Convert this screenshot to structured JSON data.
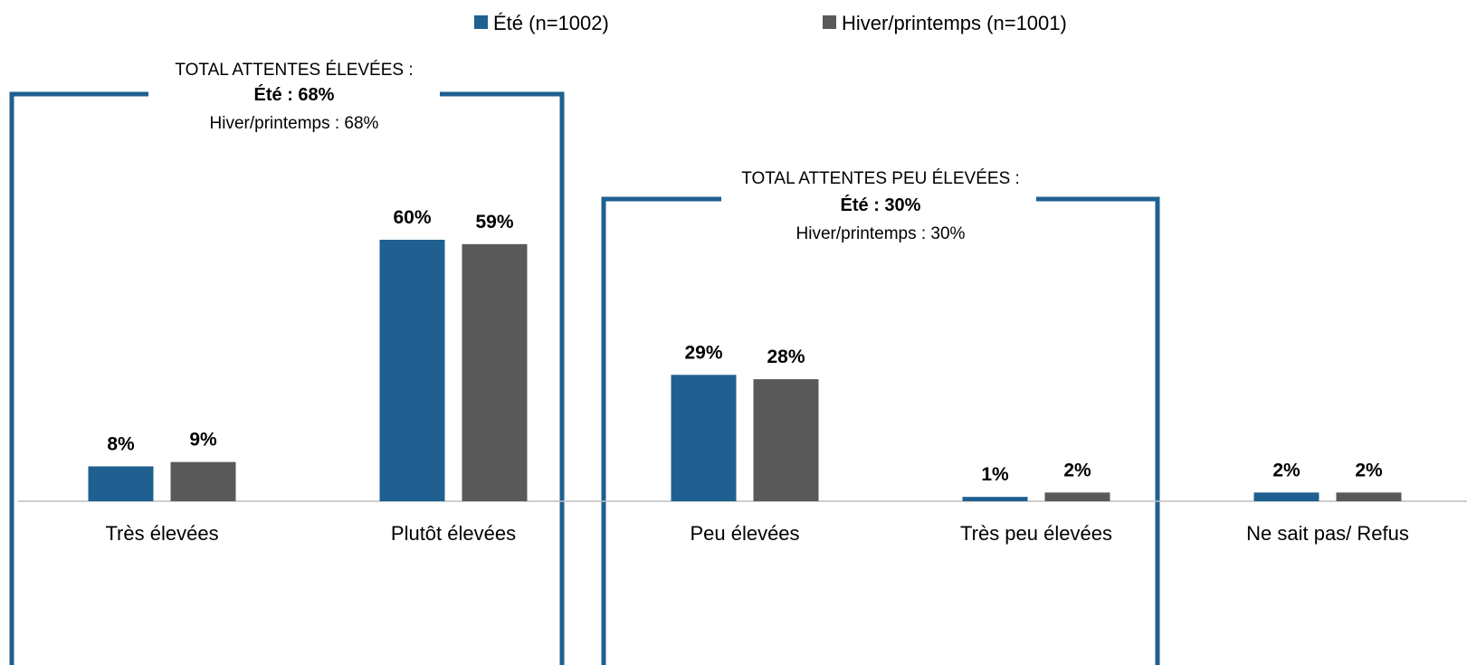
{
  "chart_data": {
    "type": "bar",
    "categories": [
      "Très élevées",
      "Plutôt élevées",
      "Peu élevées",
      "Très peu élevées",
      "Ne sait pas/ Refus"
    ],
    "series": [
      {
        "name": "Été (n=1002)",
        "color": "#1f6091",
        "values": [
          8,
          60,
          29,
          1,
          2
        ],
        "labels": [
          "8%",
          "60%",
          "29%",
          "1%",
          "2%"
        ]
      },
      {
        "name": "Hiver/printemps (n=1001)",
        "color": "#595959",
        "values": [
          9,
          59,
          28,
          2,
          2
        ],
        "labels": [
          "9%",
          "59%",
          "28%",
          "2%",
          "2%"
        ]
      }
    ],
    "ylim": [
      0,
      60
    ],
    "grid": false,
    "legend_position": "top-center",
    "groupings": [
      {
        "categories": [
          "Très élevées",
          "Plutôt élevées"
        ],
        "title": "TOTAL ATTENTES ÉLEVÉES :",
        "line1": "Été : 68%",
        "line2": "Hiver/printemps : 68%"
      },
      {
        "categories": [
          "Peu élevées",
          "Très peu élevées"
        ],
        "title": "TOTAL ATTENTES PEU ÉLEVÉES :",
        "line1": "Été : 30%",
        "line2": "Hiver/printemps : 30%"
      }
    ],
    "bracket_color": "#1f6091",
    "axis_color": "#bfbfbf"
  }
}
